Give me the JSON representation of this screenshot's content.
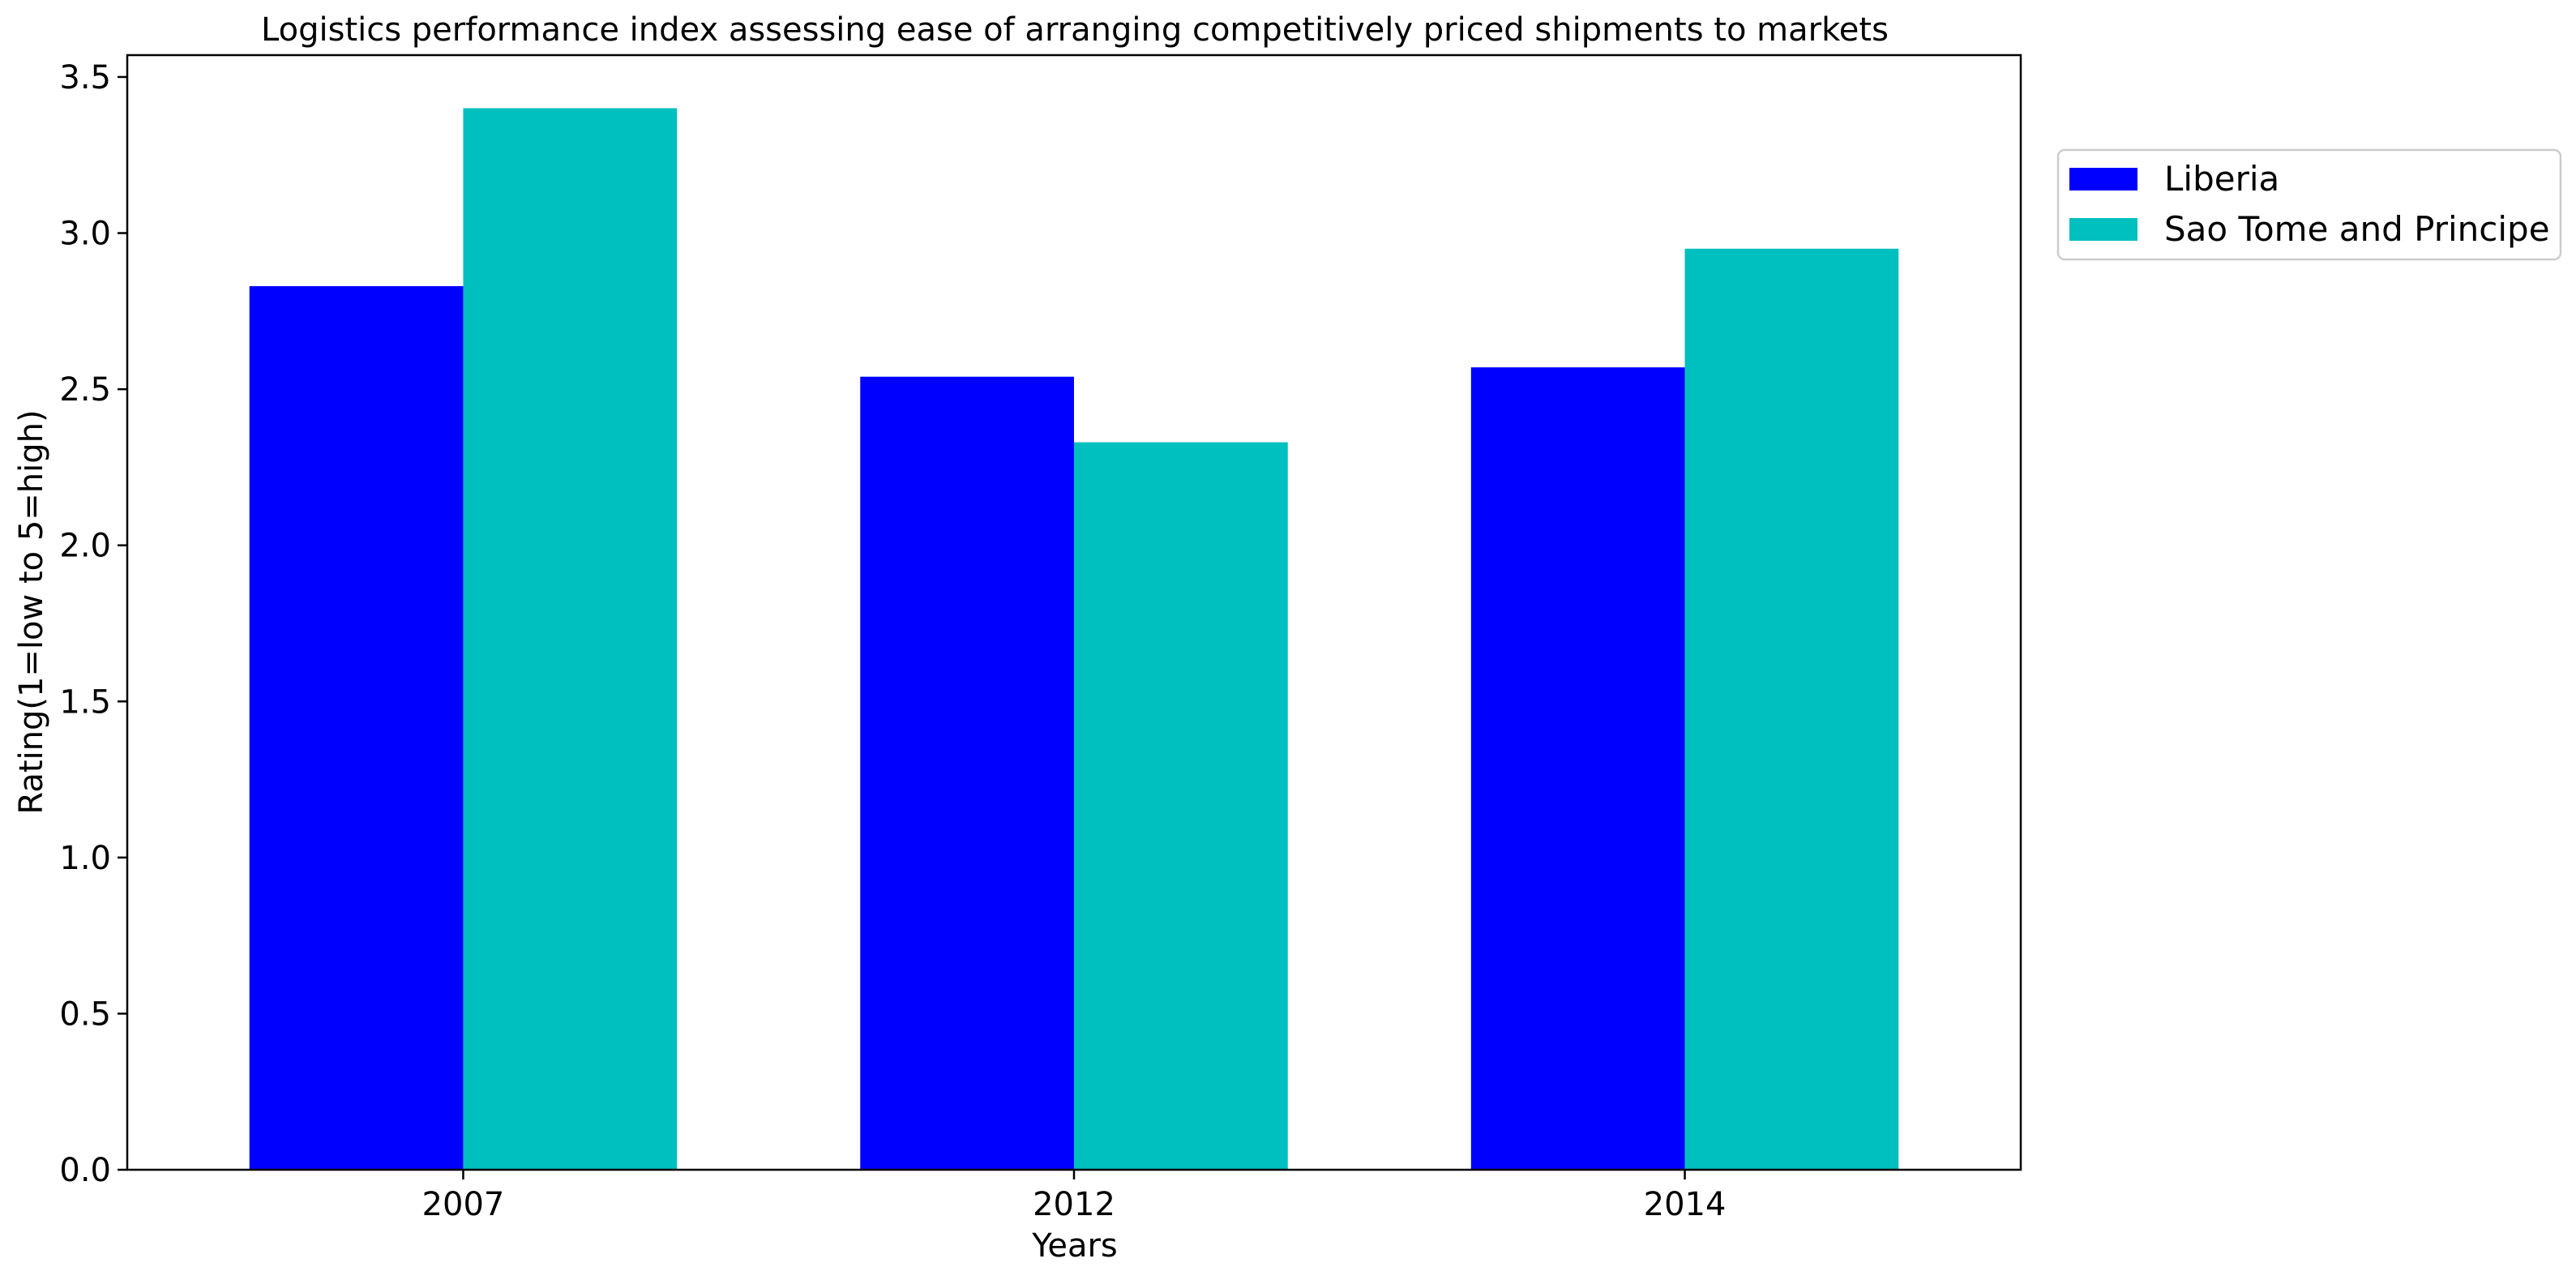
{
  "chart_data": {
    "type": "bar",
    "title": "Logistics performance index assessing ease of arranging competitively priced shipments to markets",
    "xlabel": "Years",
    "ylabel": "Rating(1=low to 5=high)",
    "categories": [
      "2007",
      "2012",
      "2014"
    ],
    "series": [
      {
        "name": "Liberia",
        "color": "#0000ff",
        "values": [
          2.83,
          2.54,
          2.57
        ]
      },
      {
        "name": "Sao Tome and Principe",
        "color": "#00bfbf",
        "values": [
          3.4,
          2.33,
          2.95
        ]
      }
    ],
    "ylim": [
      0,
      3.57
    ],
    "yticks": [
      "0.0",
      "0.5",
      "1.0",
      "1.5",
      "2.0",
      "2.5",
      "3.0",
      "3.5"
    ],
    "grid": false,
    "legend_position": "outside-top-right"
  }
}
